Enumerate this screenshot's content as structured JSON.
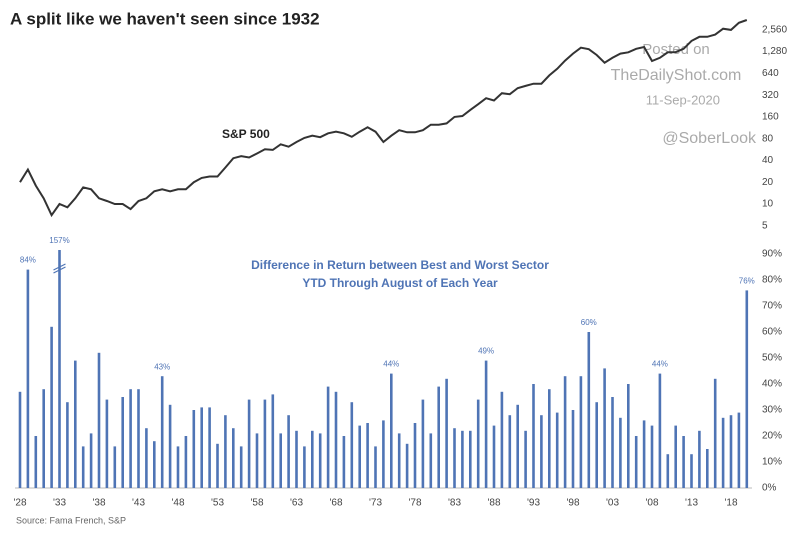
{
  "title": "A split like we haven't seen since 1932",
  "watermark": [
    "Posted on",
    "TheDailyShot.com",
    "11-Sep-2020",
    "@SoberLook"
  ],
  "source": "Source: Fama French, S&P",
  "chart_data": [
    {
      "type": "line",
      "series_label": "S&P 500",
      "color": "#333333",
      "log_scale": true,
      "x": [
        1928,
        1929,
        1930,
        1931,
        1932,
        1933,
        1934,
        1935,
        1936,
        1937,
        1938,
        1939,
        1940,
        1941,
        1942,
        1943,
        1944,
        1945,
        1946,
        1947,
        1948,
        1949,
        1950,
        1951,
        1952,
        1953,
        1954,
        1955,
        1956,
        1957,
        1958,
        1959,
        1960,
        1961,
        1962,
        1963,
        1964,
        1965,
        1966,
        1967,
        1968,
        1969,
        1970,
        1971,
        1972,
        1973,
        1974,
        1975,
        1976,
        1977,
        1978,
        1979,
        1980,
        1981,
        1982,
        1983,
        1984,
        1985,
        1986,
        1987,
        1988,
        1989,
        1990,
        1991,
        1992,
        1993,
        1994,
        1995,
        1996,
        1997,
        1998,
        1999,
        2000,
        2001,
        2002,
        2003,
        2004,
        2005,
        2006,
        2007,
        2008,
        2009,
        2010,
        2011,
        2012,
        2013,
        2014,
        2015,
        2016,
        2017,
        2018,
        2019,
        2020
      ],
      "values": [
        20,
        30,
        18,
        12,
        7,
        10,
        9,
        12,
        17,
        16,
        12,
        11,
        10,
        10,
        8.5,
        11,
        12,
        15,
        16,
        15,
        16,
        16,
        20,
        23,
        24,
        24,
        32,
        43,
        46,
        44,
        50,
        57,
        56,
        67,
        62,
        72,
        82,
        88,
        84,
        95,
        100,
        95,
        85,
        100,
        115,
        100,
        72,
        88,
        105,
        98,
        98,
        105,
        125,
        125,
        130,
        160,
        165,
        200,
        240,
        290,
        270,
        340,
        330,
        400,
        430,
        460,
        460,
        600,
        740,
        960,
        1200,
        1450,
        1380,
        1150,
        900,
        1050,
        1200,
        1250,
        1400,
        1480,
        950,
        1050,
        1250,
        1260,
        1400,
        1800,
        2050,
        2050,
        2200,
        2650,
        2550,
        3200,
        3500
      ],
      "xlim": [
        1928,
        2020
      ],
      "ylim": [
        3.5,
        3500
      ],
      "yticks": [
        {
          "value": 2560,
          "label": "2,560"
        },
        {
          "value": 1280,
          "label": "1,280"
        },
        640,
        320,
        160,
        80,
        40,
        20,
        10,
        5
      ]
    },
    {
      "type": "bar",
      "title": [
        "Difference in Return between Best and Worst Sector",
        "YTD Through August of Each Year"
      ],
      "color": "#4f74b5",
      "categories": [
        "'28",
        null,
        null,
        null,
        null,
        "'33",
        null,
        null,
        null,
        null,
        "'38",
        null,
        null,
        null,
        null,
        "'43",
        null,
        null,
        null,
        null,
        "'48",
        null,
        null,
        null,
        null,
        "'53",
        null,
        null,
        null,
        null,
        "'58",
        null,
        null,
        null,
        null,
        "'63",
        null,
        null,
        null,
        null,
        "'68",
        null,
        null,
        null,
        null,
        "'73",
        null,
        null,
        null,
        null,
        "'78",
        null,
        null,
        null,
        null,
        "'83",
        null,
        null,
        null,
        null,
        "'88",
        null,
        null,
        null,
        null,
        "'93",
        null,
        null,
        null,
        null,
        "'98",
        null,
        null,
        null,
        null,
        "'03",
        null,
        null,
        null,
        null,
        "'08",
        null,
        null,
        null,
        null,
        "'13",
        null,
        null,
        null,
        null,
        "'18",
        null,
        null
      ],
      "values": [
        37,
        84,
        20,
        38,
        62,
        157,
        33,
        49,
        16,
        21,
        52,
        34,
        16,
        35,
        38,
        38,
        23,
        18,
        43,
        32,
        16,
        20,
        30,
        31,
        31,
        17,
        28,
        23,
        16,
        34,
        21,
        34,
        36,
        21,
        28,
        22,
        16,
        22,
        21,
        39,
        37,
        20,
        33,
        24,
        25,
        16,
        26,
        44,
        21,
        17,
        25,
        34,
        21,
        39,
        42,
        23,
        22,
        22,
        34,
        49,
        24,
        37,
        28,
        32,
        22,
        40,
        28,
        38,
        29,
        43,
        30,
        43,
        60,
        33,
        46,
        35,
        27,
        40,
        20,
        26,
        24,
        44,
        13,
        24,
        20,
        13,
        22,
        15,
        42,
        27,
        28,
        29,
        76
      ],
      "value_labels": [
        null,
        "84%",
        null,
        null,
        null,
        "157%",
        null,
        null,
        null,
        null,
        null,
        null,
        null,
        null,
        null,
        null,
        null,
        null,
        "43%",
        null,
        null,
        null,
        null,
        null,
        null,
        null,
        null,
        null,
        null,
        null,
        null,
        null,
        null,
        null,
        null,
        null,
        null,
        null,
        null,
        null,
        null,
        null,
        null,
        null,
        null,
        null,
        null,
        "44%",
        null,
        null,
        null,
        null,
        null,
        null,
        null,
        null,
        null,
        null,
        null,
        "49%",
        null,
        null,
        null,
        null,
        null,
        null,
        null,
        null,
        null,
        null,
        null,
        null,
        "60%",
        null,
        null,
        null,
        null,
        null,
        null,
        null,
        null,
        "44%",
        null,
        null,
        null,
        null,
        null,
        null,
        null,
        null,
        null,
        null,
        "76%"
      ],
      "ylim": [
        0,
        90
      ],
      "yticks": [
        {
          "value": 0,
          "label": "0%"
        },
        {
          "value": 10,
          "label": "10%"
        },
        {
          "value": 20,
          "label": "20%"
        },
        {
          "value": 30,
          "label": "30%"
        },
        {
          "value": 40,
          "label": "40%"
        },
        {
          "value": 50,
          "label": "50%"
        },
        {
          "value": 60,
          "label": "60%"
        },
        {
          "value": 70,
          "label": "70%"
        },
        {
          "value": 80,
          "label": "80%"
        },
        {
          "value": 90,
          "label": "90%"
        }
      ]
    }
  ]
}
